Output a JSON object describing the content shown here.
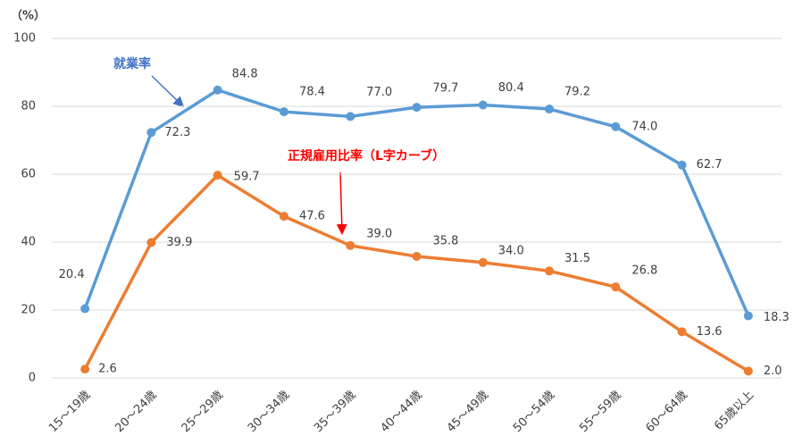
{
  "chart_data": {
    "type": "line",
    "y_unit": "（%）",
    "categories": [
      "15～19歳",
      "20～24歳",
      "25～29歳",
      "30～34歳",
      "35～39歳",
      "40～44歳",
      "45～49歳",
      "50～54歳",
      "55～59歳",
      "60～64歳",
      "65歳以上"
    ],
    "series": [
      {
        "name": "就業率",
        "color": "#5b9bd5",
        "label_color": "#4472c4",
        "values": [
          20.4,
          72.3,
          84.8,
          78.4,
          77.0,
          79.7,
          80.4,
          79.2,
          74.0,
          62.7,
          18.3
        ],
        "value_labels": [
          "20.4",
          "72.3",
          "84.8",
          "78.4",
          "77.0",
          "79.7",
          "80.4",
          "79.2",
          "74.0",
          "62.7",
          "18.3"
        ]
      },
      {
        "name": "正規雇用比率（L字カーブ）",
        "color": "#ed7d31",
        "label_color": "#ff0000",
        "values": [
          2.6,
          39.9,
          59.7,
          47.6,
          39.0,
          35.8,
          34.0,
          31.5,
          26.8,
          13.6,
          2.0
        ],
        "value_labels": [
          "2.6",
          "39.9",
          "59.7",
          "47.6",
          "39.0",
          "35.8",
          "34.0",
          "31.5",
          "26.8",
          "13.6",
          "2.0"
        ]
      }
    ],
    "ylim": [
      0,
      100
    ],
    "yticks": [
      0,
      20,
      40,
      60,
      80,
      100
    ],
    "grid": true
  }
}
